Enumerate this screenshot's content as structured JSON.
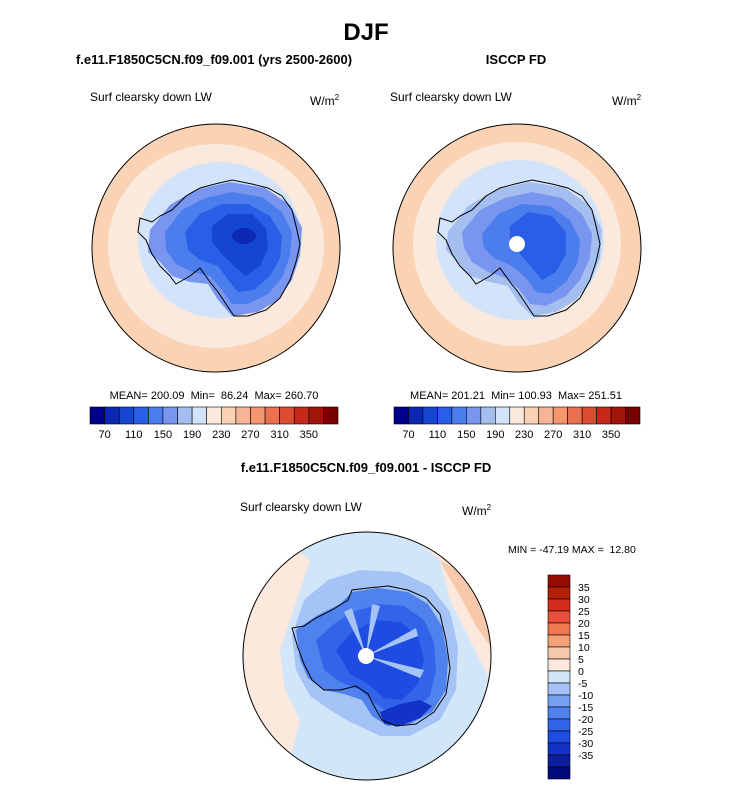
{
  "figure": {
    "title": "DJF",
    "panel_label": "Surf clearsky down LW",
    "units_base": "W/m",
    "units_exp": "2"
  },
  "palette": {
    "abs": [
      "#00008c",
      "#0a28b4",
      "#1446d2",
      "#285fe6",
      "#4b7ded",
      "#7896f0",
      "#a5bef0",
      "#d2e3fa",
      "#fbe9dd",
      "#fad2b4",
      "#f5b496",
      "#f5966e",
      "#ec7050",
      "#dc4b32",
      "#c82819",
      "#a0140a",
      "#780000"
    ],
    "diff": [
      "#000a78",
      "#0a1ea0",
      "#1432c8",
      "#1e4be1",
      "#3264ea",
      "#5082ee",
      "#78a0f0",
      "#a5c3f5",
      "#d2e6fa",
      "#fce8dc",
      "#f8c8aa",
      "#f5a078",
      "#ef7850",
      "#e6503c",
      "#d22d1e",
      "#b41e0a",
      "#960a00"
    ]
  },
  "chart_data": [
    {
      "type": "polar_map",
      "name": "model",
      "title": "f.e11.F1850C5CN.f09_f09.001 (yrs 2500-2600)",
      "variable": "Surf clearsky down LW",
      "units": "W/m2",
      "stats": {
        "mean": 200.09,
        "min": 86.24,
        "max": 260.7
      },
      "stats_label": "MEAN= 200.09  Min=  86.24  Max= 260.70",
      "polar_hole": false,
      "colorbar": {
        "orientation": "horizontal",
        "levels": [
          70,
          90,
          110,
          130,
          150,
          170,
          190,
          210,
          230,
          250,
          270,
          290,
          310,
          330,
          350
        ],
        "tick_labels": [
          "70",
          "110",
          "150",
          "190",
          "230",
          "270",
          "310",
          "350"
        ]
      }
    },
    {
      "type": "polar_map",
      "name": "obs",
      "title": "ISCCP FD",
      "variable": "Surf clearsky down LW",
      "units": "W/m2",
      "stats": {
        "mean": 201.21,
        "min": 100.93,
        "max": 251.51
      },
      "stats_label": "MEAN= 201.21  Min= 100.93  Max= 251.51",
      "polar_hole": true,
      "colorbar": {
        "orientation": "horizontal",
        "levels": [
          70,
          90,
          110,
          130,
          150,
          170,
          190,
          210,
          230,
          250,
          270,
          290,
          310,
          330,
          350
        ],
        "tick_labels": [
          "70",
          "110",
          "150",
          "190",
          "230",
          "270",
          "310",
          "350"
        ]
      }
    },
    {
      "type": "polar_map",
      "name": "diff",
      "title": "f.e11.F1850C5CN.f09_f09.001 - ISCCP FD",
      "variable": "Surf clearsky down LW",
      "units": "W/m2",
      "stats": {
        "min": -47.19,
        "max": 12.8
      },
      "stats_label": "MIN = -47.19 MAX =  12.80",
      "polar_hole": true,
      "colorbar": {
        "orientation": "vertical",
        "levels": [
          35,
          30,
          25,
          20,
          15,
          10,
          5,
          0,
          -5,
          -10,
          -15,
          -20,
          -25,
          -30,
          -35
        ],
        "tick_labels": [
          "35",
          "30",
          "25",
          "20",
          "15",
          "10",
          "5",
          "0",
          "-5",
          "-10",
          "-15",
          "-20",
          "-25",
          "-30",
          "-35"
        ]
      }
    }
  ]
}
